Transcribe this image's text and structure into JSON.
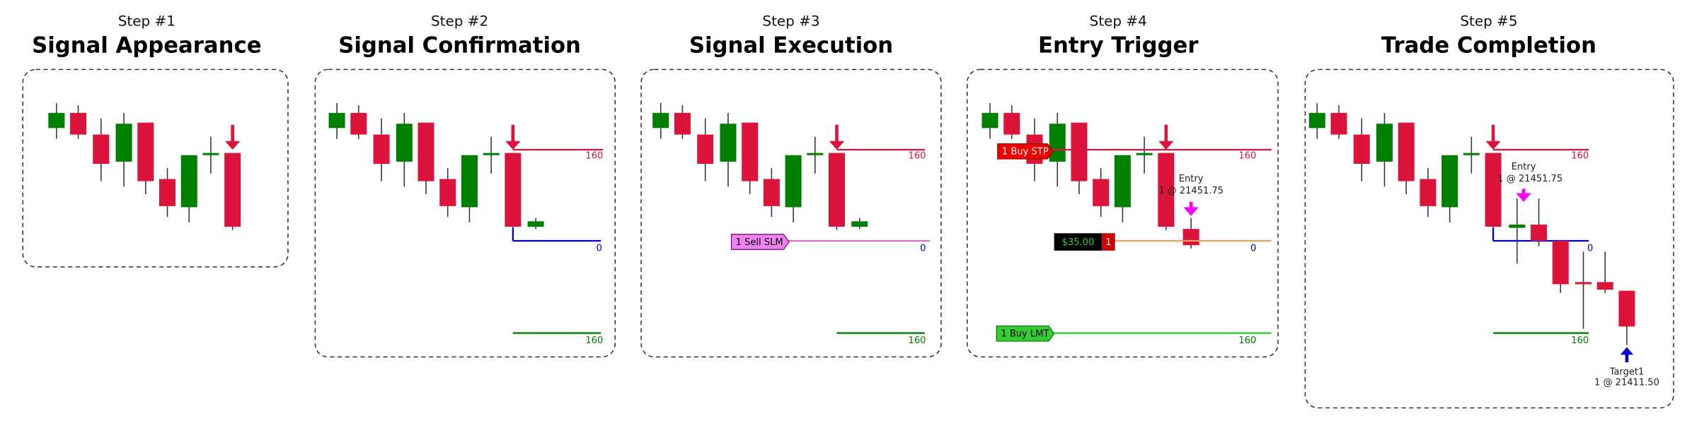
{
  "steps": [
    {
      "step": "Step #1",
      "title": "Signal Appearance"
    },
    {
      "step": "Step #2",
      "title": "Signal Confirmation",
      "upper_line_label": "160",
      "middle_line_label": "0",
      "lower_line_label": "160"
    },
    {
      "step": "Step #3",
      "title": "Signal Execution",
      "upper_line_label": "160",
      "middle_line_label": "0",
      "lower_line_label": "160",
      "order_tag": "1  Sell SLM"
    },
    {
      "step": "Step #4",
      "title": "Entry Trigger",
      "upper_line_label": "160",
      "middle_line_label": "0",
      "lower_line_label": "160",
      "stop_order_tag": "1  Buy STP",
      "limit_order_tag": "1  Buy LMT",
      "entry": "Entry",
      "entry_detail": "1 @ 21451.75",
      "pnl": "$35.00",
      "position": "1"
    },
    {
      "step": "Step #5",
      "title": "Trade Completion",
      "upper_line_label": "160",
      "middle_line_label": "0",
      "lower_line_label": "160",
      "entry": "Entry",
      "entry_detail": "1 @ 21451.75",
      "target": "Target1",
      "target_detail": "1 @ 21411.50"
    }
  ]
}
